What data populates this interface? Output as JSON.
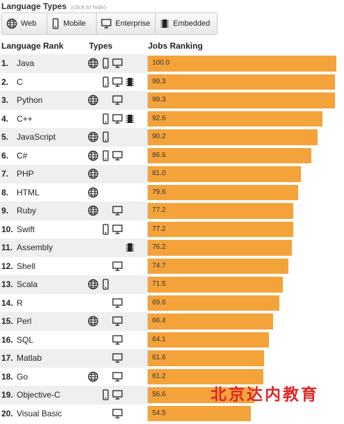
{
  "header": {
    "title": "Language Types",
    "hint": "(click to hide)"
  },
  "type_buttons": [
    {
      "label": "Web",
      "icon": "globe-icon"
    },
    {
      "label": "Mobile",
      "icon": "mobile-phone-icon"
    },
    {
      "label": "Enterprise",
      "icon": "monitor-icon"
    },
    {
      "label": "Embedded",
      "icon": "chip-icon"
    }
  ],
  "columns": {
    "rank": "Language Rank",
    "types": "Types",
    "jobs": "Jobs Ranking"
  },
  "colors": {
    "bar": "#f4a33b",
    "row_alt": "#efefef",
    "watermark": "#e02626"
  },
  "rows": [
    {
      "rank": "1.",
      "name": "Java",
      "web": true,
      "mobile": true,
      "enterprise": true,
      "embedded": false,
      "score": "100.0"
    },
    {
      "rank": "2.",
      "name": "C",
      "web": false,
      "mobile": true,
      "enterprise": true,
      "embedded": true,
      "score": "99.3"
    },
    {
      "rank": "3.",
      "name": "Python",
      "web": true,
      "mobile": false,
      "enterprise": true,
      "embedded": false,
      "score": "99.3"
    },
    {
      "rank": "4.",
      "name": "C++",
      "web": false,
      "mobile": true,
      "enterprise": true,
      "embedded": true,
      "score": "92.6"
    },
    {
      "rank": "5.",
      "name": "JavaScript",
      "web": true,
      "mobile": true,
      "enterprise": false,
      "embedded": false,
      "score": "90.2"
    },
    {
      "rank": "6.",
      "name": "C#",
      "web": true,
      "mobile": true,
      "enterprise": true,
      "embedded": false,
      "score": "86.6"
    },
    {
      "rank": "7.",
      "name": "PHP",
      "web": true,
      "mobile": false,
      "enterprise": false,
      "embedded": false,
      "score": "81.0"
    },
    {
      "rank": "8.",
      "name": "HTML",
      "web": true,
      "mobile": false,
      "enterprise": false,
      "embedded": false,
      "score": "79.6"
    },
    {
      "rank": "9.",
      "name": "Ruby",
      "web": true,
      "mobile": false,
      "enterprise": true,
      "embedded": false,
      "score": "77.2"
    },
    {
      "rank": "10.",
      "name": "Swift",
      "web": false,
      "mobile": true,
      "enterprise": true,
      "embedded": false,
      "score": "77.2"
    },
    {
      "rank": "11.",
      "name": "Assembly",
      "web": false,
      "mobile": false,
      "enterprise": false,
      "embedded": true,
      "score": "76.2"
    },
    {
      "rank": "12.",
      "name": "Shell",
      "web": false,
      "mobile": false,
      "enterprise": true,
      "embedded": false,
      "score": "74.7"
    },
    {
      "rank": "13.",
      "name": "Scala",
      "web": true,
      "mobile": true,
      "enterprise": false,
      "embedded": false,
      "score": "71.5"
    },
    {
      "rank": "14.",
      "name": "R",
      "web": false,
      "mobile": false,
      "enterprise": true,
      "embedded": false,
      "score": "69.6"
    },
    {
      "rank": "15.",
      "name": "Perl",
      "web": true,
      "mobile": false,
      "enterprise": true,
      "embedded": false,
      "score": "66.4"
    },
    {
      "rank": "16.",
      "name": "SQL",
      "web": false,
      "mobile": false,
      "enterprise": true,
      "embedded": false,
      "score": "64.1"
    },
    {
      "rank": "17.",
      "name": "Matlab",
      "web": false,
      "mobile": false,
      "enterprise": true,
      "embedded": false,
      "score": "61.6"
    },
    {
      "rank": "18.",
      "name": "Go",
      "web": true,
      "mobile": false,
      "enterprise": true,
      "embedded": false,
      "score": "61.2"
    },
    {
      "rank": "19.",
      "name": "Objective-C",
      "web": false,
      "mobile": true,
      "enterprise": true,
      "embedded": false,
      "score": "56.6"
    },
    {
      "rank": "20.",
      "name": "Visual Basic",
      "web": false,
      "mobile": false,
      "enterprise": true,
      "embedded": false,
      "score": "54.5"
    }
  ],
  "watermark": "北京达内教育"
}
